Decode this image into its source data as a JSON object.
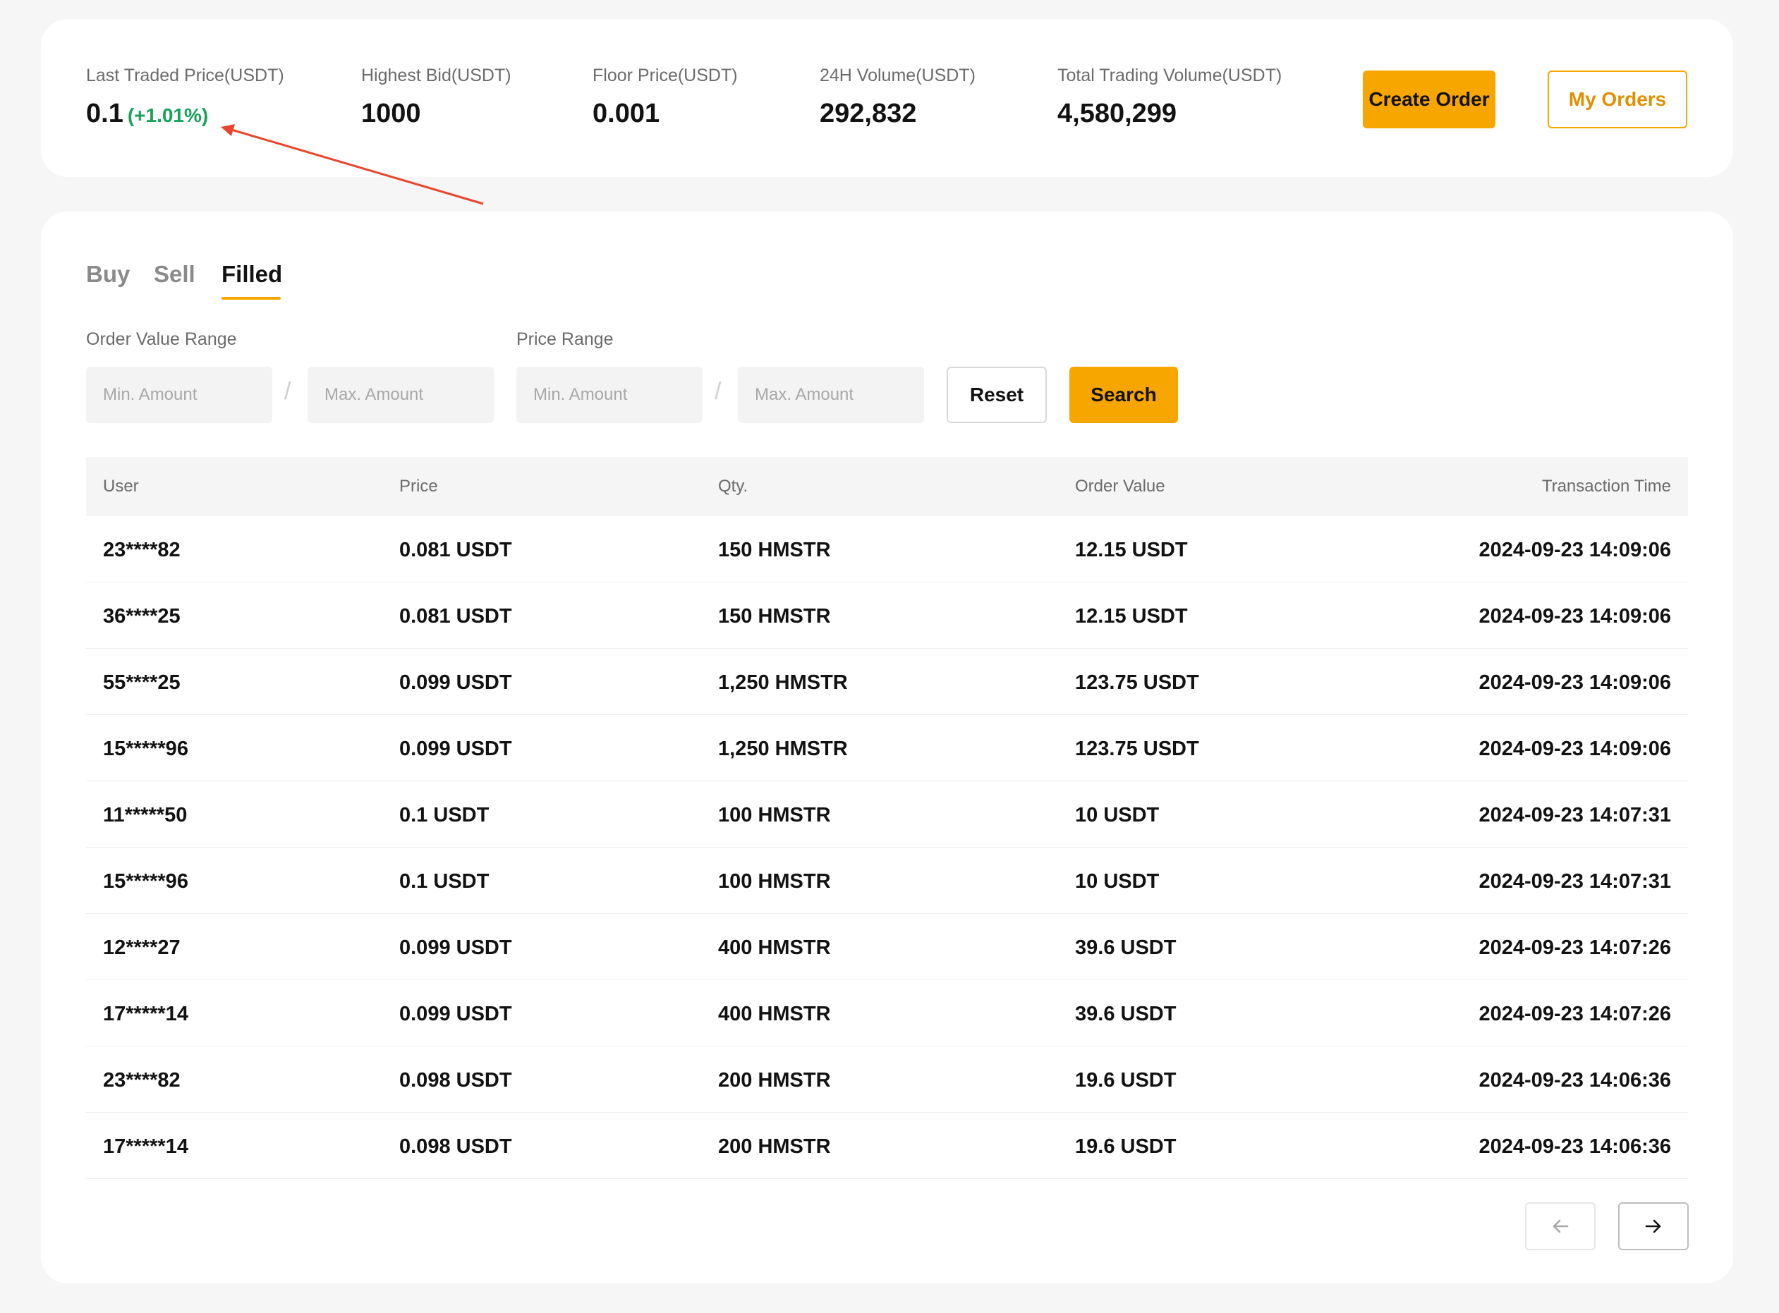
{
  "stats": [
    {
      "label": "Last Traded Price(USDT)",
      "value": "0.1",
      "change": "(+1.01%)"
    },
    {
      "label": "Highest Bid(USDT)",
      "value": "1000"
    },
    {
      "label": "Floor Price(USDT)",
      "value": "0.001"
    },
    {
      "label": "24H Volume(USDT)",
      "value": "292,832"
    },
    {
      "label": "Total Trading Volume(USDT)",
      "value": "4,580,299"
    }
  ],
  "header_buttons": {
    "create_order": "Create Order",
    "my_orders": "My Orders"
  },
  "tabs": [
    {
      "label": "Buy",
      "active": false
    },
    {
      "label": "Sell",
      "active": false
    },
    {
      "label": "Filled",
      "active": true
    }
  ],
  "filters": {
    "order_value_label": "Order Value Range",
    "price_range_label": "Price Range",
    "min_placeholder": "Min. Amount",
    "max_placeholder": "Max. Amount",
    "separator": "/",
    "reset_label": "Reset",
    "search_label": "Search"
  },
  "table": {
    "columns": [
      "User",
      "Price",
      "Qty.",
      "Order Value",
      "Transaction Time"
    ],
    "rows": [
      [
        "23****82",
        "0.081 USDT",
        "150 HMSTR",
        "12.15 USDT",
        "2024-09-23 14:09:06"
      ],
      [
        "36****25",
        "0.081 USDT",
        "150 HMSTR",
        "12.15 USDT",
        "2024-09-23 14:09:06"
      ],
      [
        "55****25",
        "0.099 USDT",
        "1,250 HMSTR",
        "123.75 USDT",
        "2024-09-23 14:09:06"
      ],
      [
        "15*****96",
        "0.099 USDT",
        "1,250 HMSTR",
        "123.75 USDT",
        "2024-09-23 14:09:06"
      ],
      [
        "11*****50",
        "0.1 USDT",
        "100 HMSTR",
        "10 USDT",
        "2024-09-23 14:07:31"
      ],
      [
        "15*****96",
        "0.1 USDT",
        "100 HMSTR",
        "10 USDT",
        "2024-09-23 14:07:31"
      ],
      [
        "12****27",
        "0.099 USDT",
        "400 HMSTR",
        "39.6 USDT",
        "2024-09-23 14:07:26"
      ],
      [
        "17*****14",
        "0.099 USDT",
        "400 HMSTR",
        "39.6 USDT",
        "2024-09-23 14:07:26"
      ],
      [
        "23****82",
        "0.098 USDT",
        "200 HMSTR",
        "19.6 USDT",
        "2024-09-23 14:06:36"
      ],
      [
        "17*****14",
        "0.098 USDT",
        "200 HMSTR",
        "19.6 USDT",
        "2024-09-23 14:06:36"
      ]
    ]
  },
  "pagination": {
    "prev_icon": "arrow-left-icon",
    "next_icon": "arrow-right-icon"
  },
  "colors": {
    "accent": "#f7a600",
    "positive": "#19a35a",
    "annotation_arrow": "#e8452c"
  }
}
